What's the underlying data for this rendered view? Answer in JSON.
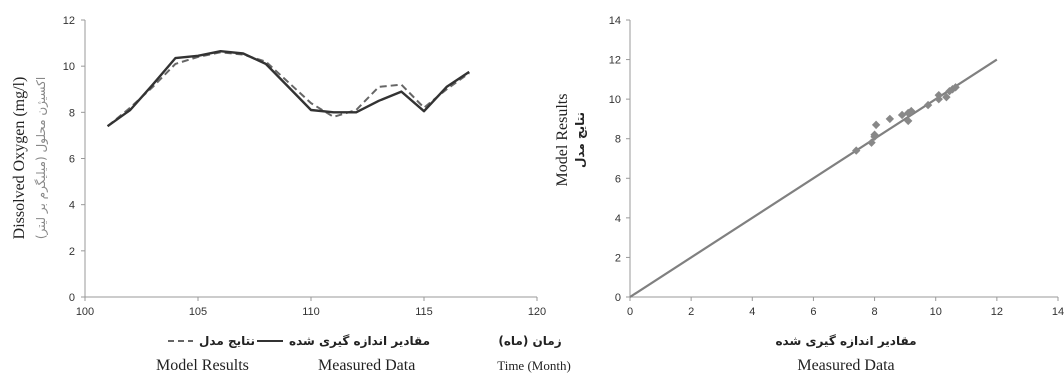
{
  "chart_data": [
    {
      "type": "line",
      "xlabel_fa": "زمان (ماه)",
      "xlabel_en": "Time (Month)",
      "ylabel_en": "Dissolved Oxygen (mg/l)",
      "ylabel_fa": "اکسیژن محلول (میلیگرم بر لیتر)",
      "xlim": [
        100,
        120
      ],
      "ylim": [
        0,
        12
      ],
      "xticks": [
        "100",
        "105",
        "110",
        "115",
        "120"
      ],
      "yticks": [
        "0",
        "2",
        "4",
        "6",
        "8",
        "10",
        "12"
      ],
      "legend_position": "bottom",
      "series": [
        {
          "name": "نتایج مدل",
          "name_en": "Model Results",
          "style": "dashed",
          "color": "#666666",
          "x": [
            101,
            102,
            103,
            104,
            105,
            106,
            107,
            108,
            109,
            110,
            111,
            112,
            113,
            114,
            115,
            116,
            117
          ],
          "y": [
            7.4,
            8.2,
            9.1,
            10.1,
            10.4,
            10.6,
            10.5,
            10.2,
            9.3,
            8.4,
            7.8,
            8.1,
            9.1,
            9.2,
            8.2,
            9.0,
            9.7
          ]
        },
        {
          "name": "مقادیر اندازه گیری شده",
          "name_en": "Measured Data",
          "style": "solid",
          "color": "#333333",
          "x": [
            101,
            102,
            103,
            104,
            105,
            106,
            107,
            108,
            109,
            110,
            111,
            112,
            113,
            114,
            115,
            116,
            117
          ],
          "y": [
            7.4,
            8.1,
            9.2,
            10.35,
            10.45,
            10.65,
            10.55,
            10.1,
            9.1,
            8.1,
            8.0,
            8.0,
            8.5,
            8.9,
            8.05,
            9.1,
            9.75
          ]
        }
      ]
    },
    {
      "type": "scatter",
      "xlabel_fa": "مقادیر اندازه گیری شده",
      "xlabel_en": "Measured Data",
      "ylabel_en": "Model Results",
      "ylabel_fa": "نتایج مدل",
      "xlim": [
        0,
        14
      ],
      "ylim": [
        0,
        14
      ],
      "xticks": [
        "0",
        "2",
        "4",
        "6",
        "8",
        "10",
        "12",
        "14"
      ],
      "yticks": [
        "0",
        "2",
        "4",
        "6",
        "8",
        "10",
        "12",
        "14"
      ],
      "marker_color": "#888888",
      "line_color": "#808080",
      "reference_line": {
        "x": [
          0,
          12
        ],
        "y": [
          0,
          12
        ]
      },
      "points": [
        {
          "x": 7.4,
          "y": 7.4
        },
        {
          "x": 7.9,
          "y": 7.8
        },
        {
          "x": 8.0,
          "y": 8.1
        },
        {
          "x": 8.0,
          "y": 8.2
        },
        {
          "x": 8.05,
          "y": 8.7
        },
        {
          "x": 8.5,
          "y": 9.0
        },
        {
          "x": 8.9,
          "y": 9.2
        },
        {
          "x": 9.1,
          "y": 9.3
        },
        {
          "x": 9.1,
          "y": 8.9
        },
        {
          "x": 9.2,
          "y": 9.4
        },
        {
          "x": 9.75,
          "y": 9.7
        },
        {
          "x": 10.1,
          "y": 10.0
        },
        {
          "x": 10.1,
          "y": 10.2
        },
        {
          "x": 10.35,
          "y": 10.1
        },
        {
          "x": 10.45,
          "y": 10.4
        },
        {
          "x": 10.55,
          "y": 10.5
        },
        {
          "x": 10.65,
          "y": 10.6
        }
      ]
    }
  ]
}
